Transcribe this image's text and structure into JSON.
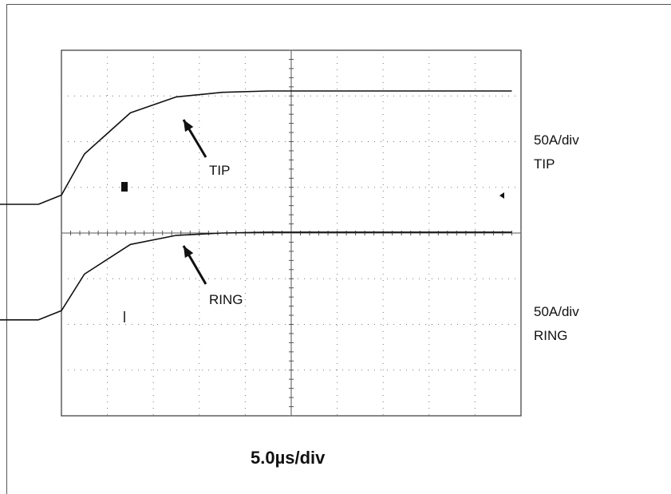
{
  "chart_data": {
    "type": "line",
    "xlabel": "5.0µs/div",
    "grid": true,
    "x": [
      -15.0,
      -11.0,
      -10.0,
      -9.0,
      -7.0,
      -5.0,
      -3.0,
      -1.0,
      1.0,
      3.0,
      5.0,
      9.6
    ],
    "series": [
      {
        "name": "TIP",
        "scale_label": "50A/div",
        "trace_label": "TIP",
        "values": [
          -2.2,
          -2.2,
          -2.0,
          -1.1,
          -0.2,
          0.15,
          0.25,
          0.28,
          0.28,
          0.28,
          0.28,
          0.28
        ]
      },
      {
        "name": "RING",
        "scale_label": "50A/div",
        "trace_label": "RING",
        "values": [
          -1.9,
          -1.9,
          -1.7,
          -0.9,
          -0.25,
          -0.05,
          0.0,
          0.02,
          0.02,
          0.02,
          0.02,
          0.02
        ]
      }
    ],
    "annotations": [
      "TIP",
      "RING"
    ]
  }
}
